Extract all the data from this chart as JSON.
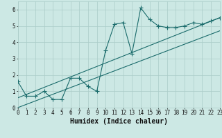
{
  "xlabel": "Humidex (Indice chaleur)",
  "xlim": [
    0,
    23
  ],
  "ylim": [
    0,
    6.5
  ],
  "xtick_values": [
    0,
    1,
    2,
    3,
    4,
    5,
    6,
    7,
    8,
    9,
    10,
    11,
    12,
    13,
    14,
    15,
    16,
    17,
    18,
    19,
    20,
    21,
    22,
    23
  ],
  "xtick_labels": [
    "0",
    "1",
    "2",
    "3",
    "4",
    "5",
    "6",
    "7",
    "8",
    "9",
    "10",
    "11",
    "12",
    "13",
    "14",
    "15",
    "16",
    "17",
    "18",
    "19",
    "20",
    "21",
    "22",
    "23"
  ],
  "ytick_values": [
    0,
    1,
    2,
    3,
    4,
    5,
    6
  ],
  "curve_x": [
    0,
    1,
    2,
    3,
    4,
    5,
    6,
    7,
    8,
    9,
    10,
    11,
    12,
    13,
    14,
    15,
    16,
    17,
    18,
    19,
    20,
    21,
    22,
    23
  ],
  "curve_y": [
    1.6,
    0.7,
    0.7,
    1.0,
    0.5,
    0.5,
    1.8,
    1.8,
    1.3,
    1.0,
    3.5,
    5.1,
    5.2,
    3.3,
    6.1,
    5.4,
    5.0,
    4.9,
    4.9,
    5.0,
    5.2,
    5.1,
    5.3,
    5.5
  ],
  "line1_x": [
    0,
    23
  ],
  "line1_y": [
    0.6,
    5.5
  ],
  "line2_x": [
    0,
    23
  ],
  "line2_y": [
    0.0,
    4.7
  ],
  "bg_color": "#cce8e4",
  "grid_color": "#aaccc8",
  "line_color": "#1a6b6b",
  "curve_color": "#1a6b6b",
  "marker": "+",
  "markersize": 4,
  "linewidth": 0.8,
  "xlabel_fontsize": 7,
  "tick_fontsize": 5.5
}
